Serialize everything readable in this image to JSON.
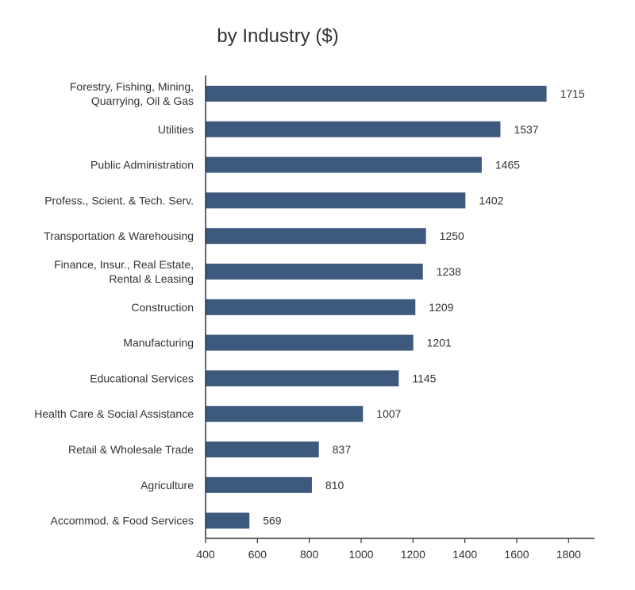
{
  "chart_data": {
    "type": "bar",
    "orientation": "horizontal",
    "title": "by Industry ($)",
    "xlabel": "",
    "ylabel": "",
    "categories": [
      [
        "Forestry, Fishing, Mining,",
        "Quarrying, Oil & Gas"
      ],
      [
        "Utilities"
      ],
      [
        "Public Administration"
      ],
      [
        "Profess., Scient. & Tech. Serv."
      ],
      [
        "Transportation & Warehousing"
      ],
      [
        "Finance, Insur., Real Estate,",
        "Rental & Leasing"
      ],
      [
        "Construction"
      ],
      [
        "Manufacturing"
      ],
      [
        "Educational Services"
      ],
      [
        "Health Care & Social Assistance"
      ],
      [
        "Retail & Wholesale Trade"
      ],
      [
        "Agriculture"
      ],
      [
        "Accommod. & Food Services"
      ]
    ],
    "values": [
      1715,
      1537,
      1465,
      1402,
      1250,
      1238,
      1209,
      1201,
      1145,
      1007,
      837,
      810,
      569
    ],
    "xlim": [
      400,
      1900
    ],
    "xticks": [
      400,
      600,
      800,
      1000,
      1200,
      1400,
      1600,
      1800
    ],
    "grid": false,
    "legend": "none",
    "bar_color": "#3d5a7e",
    "axis_color": "#333333"
  }
}
